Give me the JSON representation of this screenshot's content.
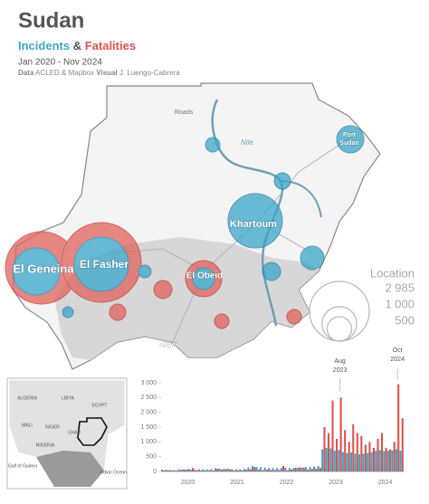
{
  "header": {
    "title": "Sudan",
    "incidents": "Incidents",
    "amp": "&",
    "fatalities": "Fatalities",
    "period": "Jan 2020 - Nov 2024",
    "data_label": "Data",
    "data_source": "ACLED & Mapbox",
    "visual_label": "Visual",
    "visual_author": "J. Luengo-Cabrera"
  },
  "map": {
    "labels": {
      "roads": "Roads",
      "nile": "Nile",
      "port_sudan": [
        "Port",
        "Sudan"
      ],
      "khartoum": "Khartoum",
      "el_geneina": "El Geneina",
      "el_fasher": "El Fasher",
      "el_obeid": "El Obeid",
      "abyei": "Abyei"
    },
    "legend": {
      "title": "Location",
      "sizes": [
        {
          "value": 2985,
          "label": "2 985"
        },
        {
          "value": 1000,
          "label": "1 000"
        },
        500
      ]
    }
  },
  "inset": {
    "labels": [
      "ALGERIA",
      "LIBYA",
      "EGYPT",
      "MALI",
      "NIGER",
      "CHAD",
      "NIGERIA",
      "Gulf of Guinea",
      "Indian Ocean"
    ]
  },
  "chart_data": {
    "type": "bar",
    "categories": [
      null,
      null,
      null,
      null,
      null,
      null,
      "2020",
      null,
      null,
      null,
      null,
      null,
      null,
      null,
      null,
      null,
      null,
      null,
      "2021",
      null,
      null,
      null,
      null,
      null,
      null,
      null,
      null,
      null,
      null,
      null,
      "2022",
      null,
      null,
      null,
      null,
      null,
      null,
      null,
      null,
      null,
      null,
      null,
      "2023",
      null,
      null,
      null,
      null,
      null,
      null,
      null,
      null,
      null,
      null,
      null,
      "2024",
      null,
      null,
      null,
      null
    ],
    "series": [
      {
        "name": "Incidents",
        "color": "#3aa6c9",
        "values": [
          60,
          55,
          50,
          45,
          60,
          70,
          65,
          55,
          60,
          70,
          75,
          60,
          80,
          110,
          90,
          85,
          95,
          80,
          75,
          70,
          85,
          130,
          180,
          150,
          140,
          130,
          120,
          110,
          115,
          120,
          130,
          115,
          110,
          120,
          130,
          140,
          150,
          160,
          180,
          750,
          800,
          780,
          700,
          720,
          650,
          620,
          640,
          600,
          580,
          600,
          620,
          650,
          700,
          720,
          690,
          700,
          710,
          760,
          700
        ]
      },
      {
        "name": "Fatalities",
        "color": "#d9534f",
        "values": [
          40,
          35,
          30,
          25,
          50,
          60,
          80,
          120,
          40,
          30,
          30,
          40,
          30,
          90,
          60,
          80,
          70,
          30,
          40,
          35,
          60,
          70,
          150,
          60,
          40,
          60,
          50,
          45,
          50,
          190,
          40,
          60,
          120,
          140,
          130,
          60,
          80,
          90,
          120,
          1500,
          1300,
          2400,
          1100,
          2500,
          1400,
          1000,
          1600,
          1300,
          1200,
          900,
          1000,
          800,
          1100,
          1300,
          800,
          750,
          1000,
          2950,
          1800
        ]
      }
    ],
    "ylim": [
      0,
      3000
    ],
    "yticks": [
      0,
      500,
      {
        "value": 1000,
        "label": "1 000"
      },
      {
        "value": 1500,
        "label": "1 500"
      },
      {
        "value": 2000,
        "label": "2 000"
      },
      {
        "value": 2500,
        "label": "2 500"
      },
      {
        "value": 3000,
        "label": "3 000"
      }
    ],
    "annotations": [
      [
        "Aug",
        "2023"
      ],
      [
        "Oct",
        "2024"
      ]
    ]
  }
}
